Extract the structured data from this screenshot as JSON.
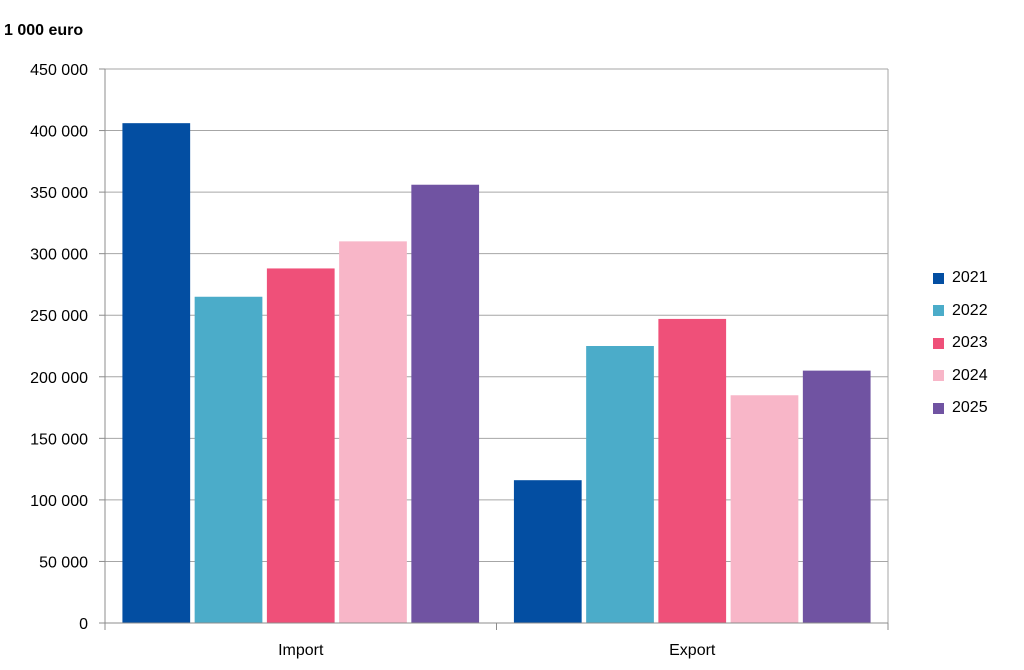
{
  "chart_data": {
    "type": "bar",
    "title": "",
    "unit_label": "1 000 euro",
    "xlabel": "",
    "ylabel": "",
    "categories": [
      "Import",
      "Export"
    ],
    "series": [
      {
        "name": "2021",
        "color": "#034EA2",
        "values": [
          406000,
          116000
        ]
      },
      {
        "name": "2022",
        "color": "#4BACC9",
        "values": [
          265000,
          225000
        ]
      },
      {
        "name": "2023",
        "color": "#EF5079",
        "values": [
          288000,
          247000
        ]
      },
      {
        "name": "2024",
        "color": "#F8B6C8",
        "values": [
          310000,
          185000
        ]
      },
      {
        "name": "2025",
        "color": "#7053A2",
        "values": [
          356000,
          205000
        ]
      }
    ],
    "ylim": [
      0,
      450000
    ],
    "yticks": [
      0,
      50000,
      100000,
      150000,
      200000,
      250000,
      300000,
      350000,
      400000,
      450000
    ],
    "ytick_labels": [
      "0",
      "50 000",
      "100 000",
      "150 000",
      "200 000",
      "250 000",
      "300 000",
      "350 000",
      "400 000",
      "450 000"
    ],
    "grid": true,
    "legend_position": "right"
  }
}
